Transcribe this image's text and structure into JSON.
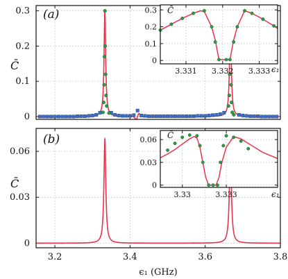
{
  "chart_data": [
    {
      "panel": "(a)",
      "type": "line",
      "xlabel": "",
      "ylabel": "C̄",
      "xlim": [
        3.15,
        3.8
      ],
      "ylim": [
        -0.008,
        0.315
      ],
      "xticks": [
        3.2,
        3.4,
        3.6,
        3.8
      ],
      "xticklabels": [
        "",
        "",
        "",
        ""
      ],
      "yticks": [
        0,
        0.1,
        0.2,
        0.3
      ],
      "yticklabels": [
        "0",
        "0.1",
        "0.2",
        "0.3"
      ],
      "grid": true,
      "legend": "none",
      "series": [
        {
          "style": "red-curve",
          "color": "#e8334a",
          "peaks": [
            {
              "center": 3.333,
              "height": 0.3,
              "width": 0.0026
            },
            {
              "center": 3.667,
              "height": 0.3,
              "width": 0.0026
            }
          ],
          "feature": {
            "center": 3.42,
            "amplitude": 0.015
          },
          "baseline": 0.0
        },
        {
          "style": "blue-squares",
          "color": "#3a6fc7",
          "x": [
            3.16,
            3.17,
            3.18,
            3.19,
            3.2,
            3.21,
            3.22,
            3.23,
            3.24,
            3.25,
            3.26,
            3.27,
            3.28,
            3.29,
            3.3,
            3.31,
            3.32,
            3.35,
            3.36,
            3.37,
            3.38,
            3.39,
            3.4,
            3.41,
            3.42,
            3.43,
            3.44,
            3.45,
            3.46,
            3.47,
            3.48,
            3.49,
            3.5,
            3.51,
            3.52,
            3.53,
            3.54,
            3.55,
            3.56,
            3.57,
            3.58,
            3.59,
            3.6,
            3.61,
            3.62,
            3.63,
            3.64,
            3.65,
            3.69,
            3.7,
            3.71,
            3.72,
            3.73,
            3.74,
            3.75,
            3.76,
            3.77,
            3.78,
            3.79
          ],
          "y": [
            0,
            0,
            0,
            0,
            0,
            0,
            0,
            0,
            0,
            0,
            0.001,
            0.001,
            0.001,
            0.002,
            0.003,
            0.005,
            0.011,
            0.011,
            0.005,
            0.003,
            0.002,
            0.002,
            0.002,
            0.004,
            0.017,
            0.003,
            0.002,
            0.001,
            0.001,
            0.001,
            0.001,
            0.001,
            0.001,
            0.001,
            0.001,
            0.001,
            0.001,
            0.001,
            0.001,
            0.001,
            0.002,
            0.002,
            0.002,
            0.003,
            0.004,
            0.005,
            0.007,
            0.011,
            0.005,
            0.003,
            0.002,
            0.001,
            0.001,
            0.001,
            0,
            0,
            0,
            0,
            0
          ]
        },
        {
          "style": "green-dots",
          "color": "#2e9a45",
          "x": [
            3.328,
            3.33,
            3.331,
            3.332,
            3.3333,
            3.334,
            3.335,
            3.336,
            3.338,
            3.344,
            3.662,
            3.664,
            3.665,
            3.666,
            3.667,
            3.668,
            3.669,
            3.67,
            3.672,
            3.676
          ],
          "y": [
            0.012,
            0.04,
            0.09,
            0.17,
            0.3,
            0.2,
            0.12,
            0.06,
            0.03,
            0.01,
            0.03,
            0.06,
            0.12,
            0.2,
            0.3,
            0.17,
            0.09,
            0.04,
            0.012,
            0.005
          ]
        }
      ],
      "inset": {
        "xlabel": "ϵ₁",
        "ylabel": "C̄",
        "xlim": [
          3.3303,
          3.3335
        ],
        "ylim": [
          -0.02,
          0.33
        ],
        "xticks": [
          3.331,
          3.332,
          3.333
        ],
        "xticklabels": [
          "3.331",
          "3.332",
          "3.333"
        ],
        "yticks": [
          0,
          0.1,
          0.2,
          0.3
        ],
        "yticklabels": [
          "0",
          "0.1",
          "0.2",
          "0.3"
        ],
        "red": {
          "x": [
            3.3303,
            3.3306,
            3.3309,
            3.3312,
            3.3314,
            3.3315,
            3.3317,
            3.3318,
            3.3319,
            3.332,
            3.3321,
            3.3322,
            3.3323,
            3.3324,
            3.3326,
            3.3328,
            3.3331,
            3.3334,
            3.3335
          ],
          "y": [
            0.18,
            0.215,
            0.25,
            0.28,
            0.295,
            0.29,
            0.2,
            0.12,
            0.005,
            0.005,
            0.005,
            0.005,
            0.12,
            0.2,
            0.295,
            0.28,
            0.245,
            0.205,
            0.19
          ]
        },
        "green": {
          "x": [
            3.3303,
            3.3306,
            3.3309,
            3.3312,
            3.3315,
            3.3317,
            3.3318,
            3.3319,
            3.3321,
            3.3322,
            3.3323,
            3.3324,
            3.3326,
            3.3328,
            3.3331,
            3.3334
          ],
          "y": [
            0.18,
            0.215,
            0.25,
            0.28,
            0.295,
            0.2,
            0.11,
            0.005,
            0.005,
            0.005,
            0.11,
            0.2,
            0.295,
            0.28,
            0.245,
            0.205
          ]
        }
      }
    },
    {
      "panel": "(b)",
      "type": "line",
      "xlabel": "ϵ₁ (GHz)",
      "ylabel": "C̄",
      "xlim": [
        3.15,
        3.8
      ],
      "ylim": [
        -0.003,
        0.075
      ],
      "xticks": [
        3.2,
        3.4,
        3.6,
        3.8
      ],
      "xticklabels": [
        "3.2",
        "3.4",
        "3.6",
        "3.8"
      ],
      "yticks": [
        0,
        0.03,
        0.06
      ],
      "yticklabels": [
        "0",
        "0.03",
        "0.06"
      ],
      "grid": true,
      "legend": "none",
      "series": [
        {
          "style": "red-curve",
          "color": "#e8334a",
          "peaks": [
            {
              "center": 3.333,
              "height": 0.068,
              "width": 0.003
            },
            {
              "center": 3.667,
              "height": 0.068,
              "width": 0.003
            }
          ],
          "baseline": 0.0
        }
      ],
      "inset": {
        "xlabel": "ϵ₁",
        "ylabel": "C̄",
        "xlim": [
          3.3285,
          3.3365
        ],
        "ylim": [
          -0.003,
          0.072
        ],
        "xticks": [
          3.33,
          3.333
        ],
        "xticklabels": [
          "3.33",
          "3.333"
        ],
        "yticks": [
          0,
          0.03,
          0.06
        ],
        "yticklabels": [
          "0",
          "0.03",
          "0.06"
        ],
        "red": {
          "x": [
            3.3285,
            3.329,
            3.3295,
            3.33,
            3.3305,
            3.3308,
            3.331,
            3.3312,
            3.3314,
            3.3316,
            3.3318,
            3.3321,
            3.3323,
            3.3325,
            3.3327,
            3.333,
            3.3335,
            3.334,
            3.3345,
            3.335,
            3.3355,
            3.336,
            3.3365
          ],
          "y": [
            0.036,
            0.041,
            0.047,
            0.054,
            0.061,
            0.064,
            0.062,
            0.05,
            0.03,
            0.01,
            0.0,
            0.0,
            0.0,
            0.01,
            0.03,
            0.05,
            0.064,
            0.061,
            0.055,
            0.049,
            0.043,
            0.039,
            0.035
          ]
        },
        "green": {
          "x": [
            3.329,
            3.3295,
            3.33,
            3.3305,
            3.331,
            3.3312,
            3.3314,
            3.3318,
            3.3321,
            3.3324,
            3.3326,
            3.3328,
            3.333,
            3.3335,
            3.334,
            3.3345
          ],
          "y": [
            0.046,
            0.055,
            0.063,
            0.066,
            0.065,
            0.052,
            0.03,
            0.0,
            0.0,
            0.0,
            0.03,
            0.052,
            0.065,
            0.063,
            0.058,
            0.048
          ]
        }
      }
    }
  ],
  "panel_labels": {
    "a": "(a)",
    "b": "(b)"
  },
  "axis_labels": {
    "y_main": "C̄",
    "x_main": "ϵ₁ (GHz)",
    "x_inset": "ϵ₁",
    "y_inset": "C̄"
  },
  "colors": {
    "red": "#e8334a",
    "blue": "#3a6fc7",
    "green": "#2e9a45"
  }
}
